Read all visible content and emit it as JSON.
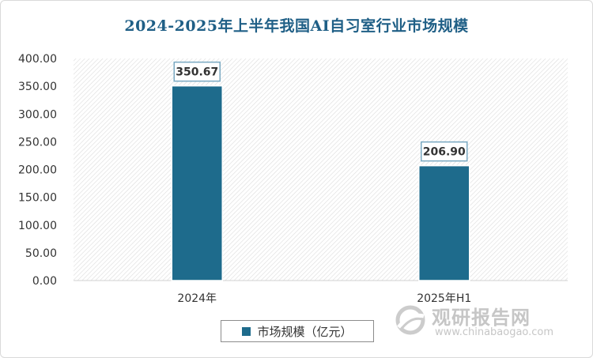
{
  "chart_data": {
    "type": "bar",
    "title": "2024-2025年上半年我国AI自习室行业市场规模",
    "categories": [
      "2024年",
      "2025年H1"
    ],
    "series": [
      {
        "name": "市场规模（亿元）",
        "values": [
          350.67,
          206.9
        ],
        "labels": [
          "350.67",
          "206.90"
        ]
      }
    ],
    "ylim": [
      0,
      400
    ],
    "yticks": [
      "0.00",
      "50.00",
      "100.00",
      "150.00",
      "200.00",
      "250.00",
      "300.00",
      "350.00",
      "400.00"
    ],
    "ytick_values": [
      0,
      50,
      100,
      150,
      200,
      250,
      300,
      350,
      400
    ],
    "grid": false,
    "legend": "bottom",
    "colors": {
      "bar": "#1e6b8c",
      "label_border": "#7aa9c2",
      "title": "#1f5f86"
    }
  },
  "watermark": {
    "name": "观研报告网",
    "url": "www.chinabaogao.com"
  }
}
